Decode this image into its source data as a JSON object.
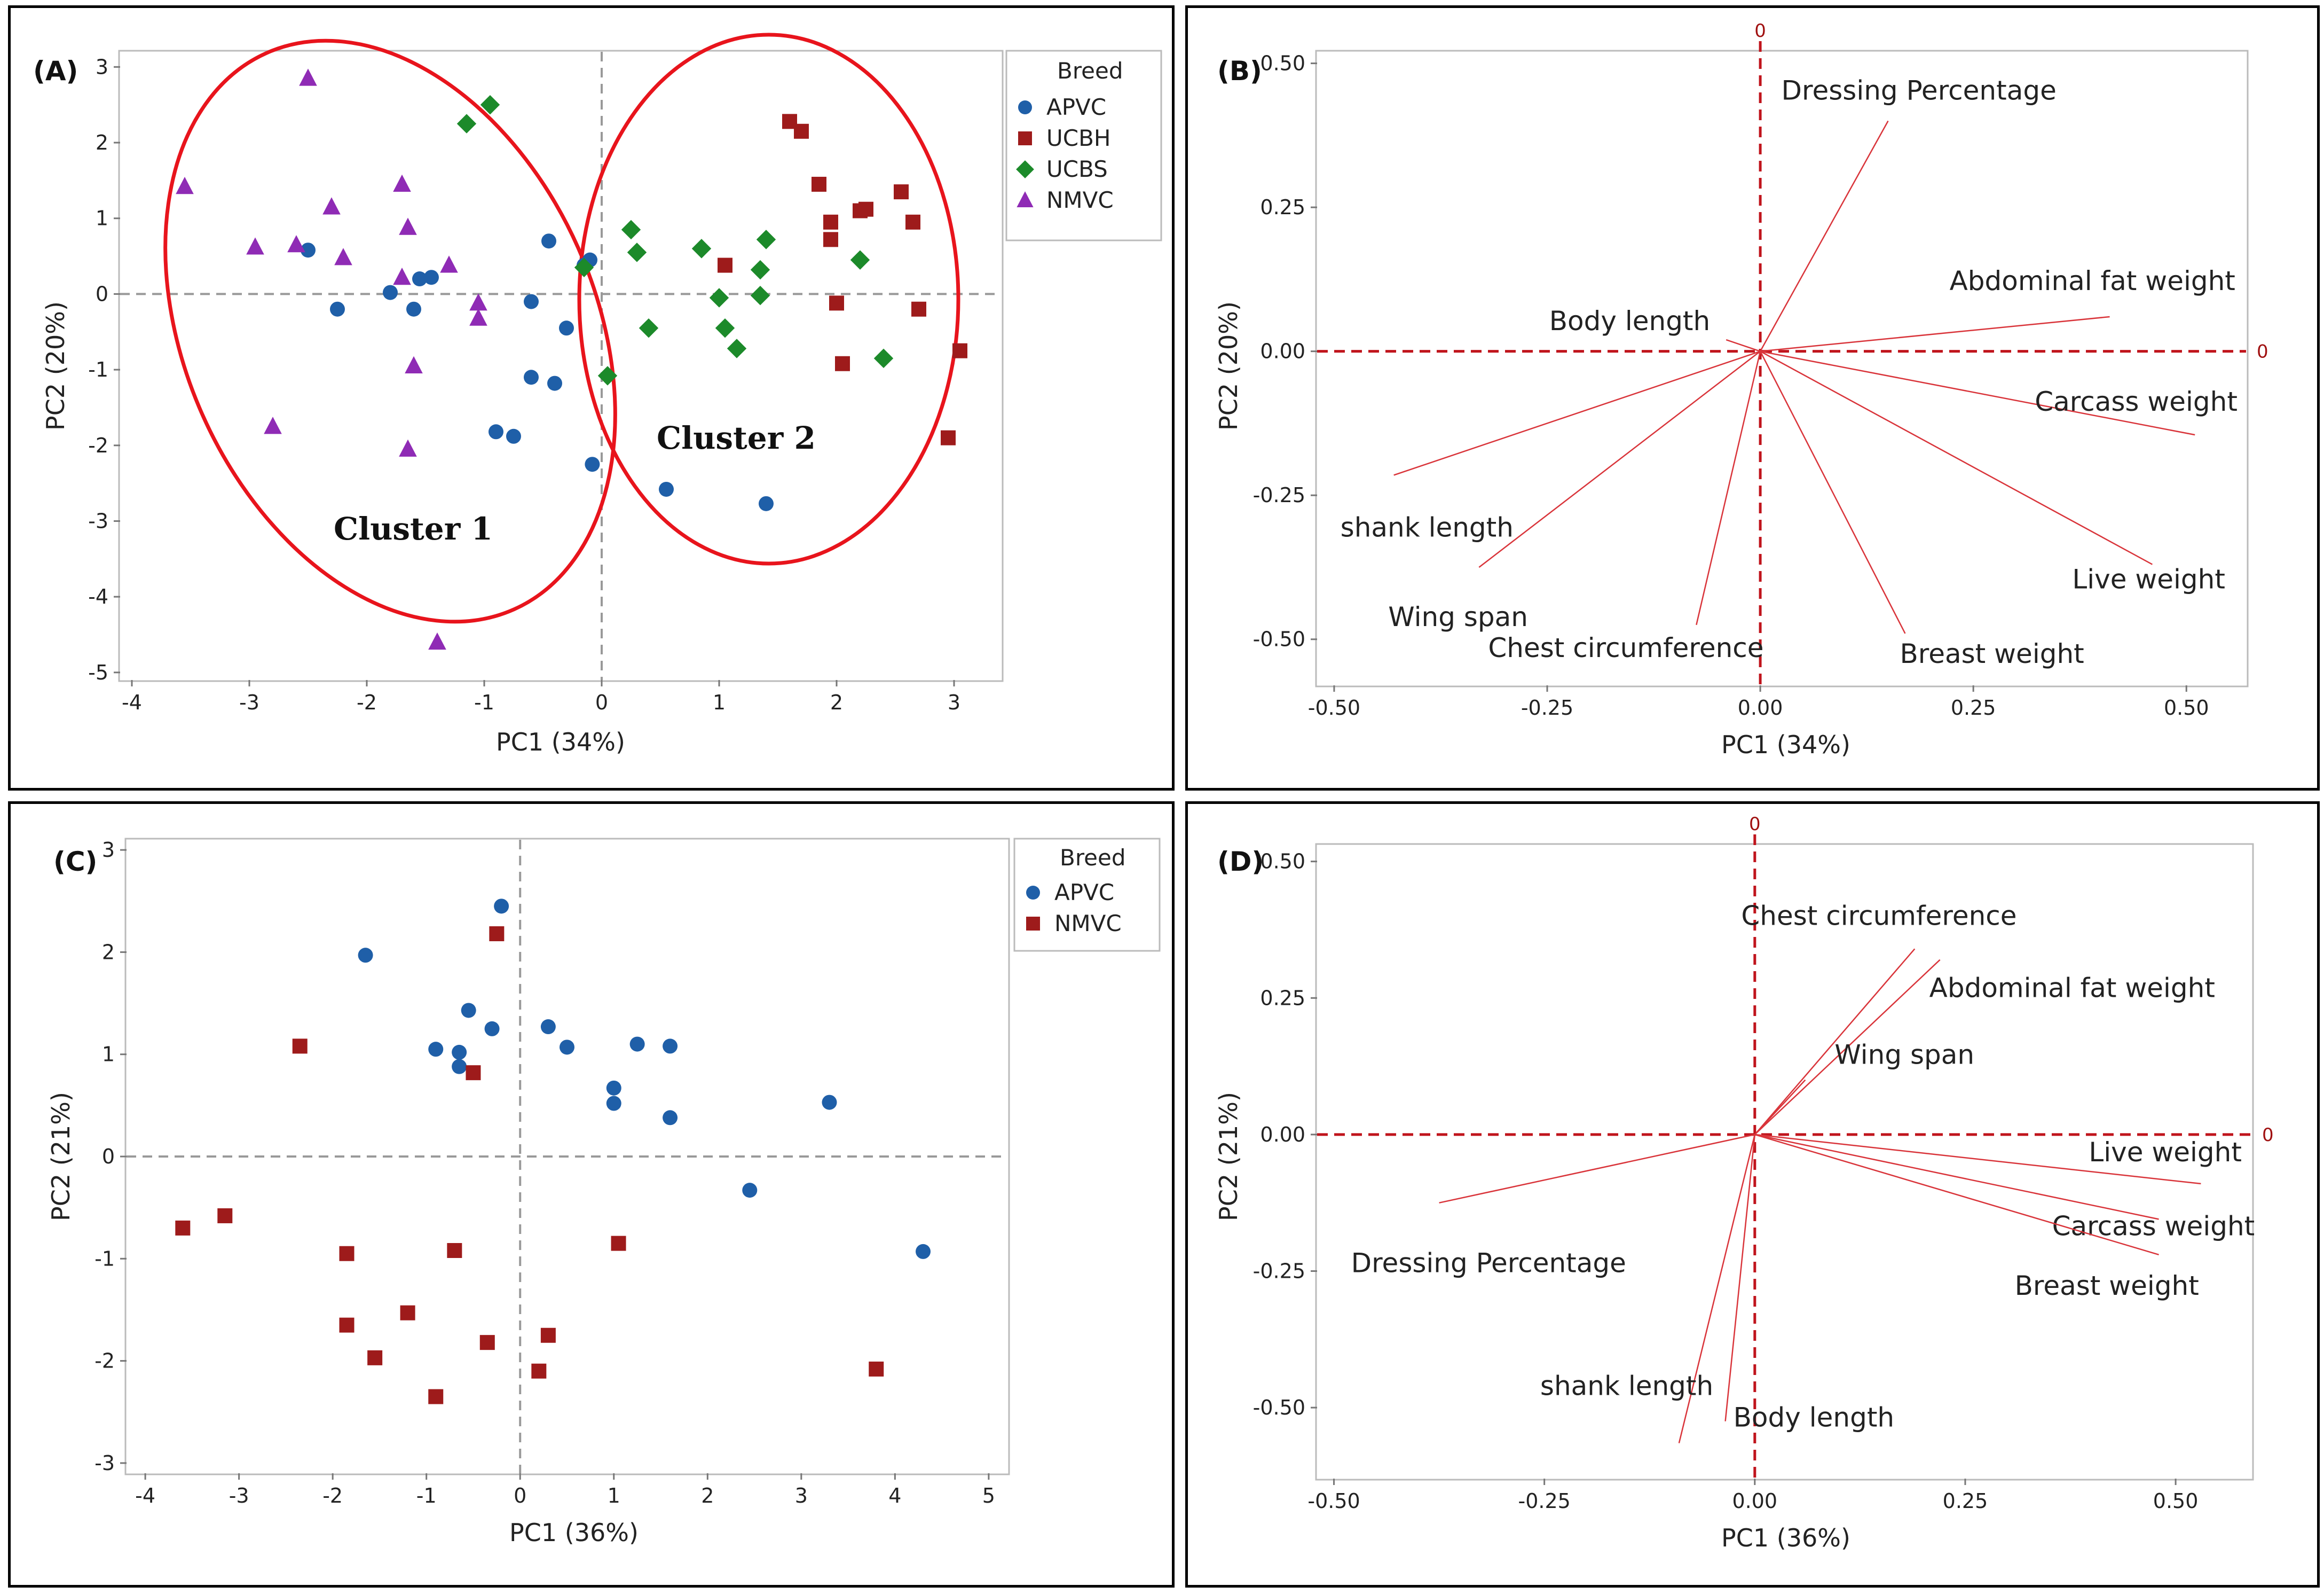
{
  "chart_data": [
    {
      "panel": "(A)",
      "type": "scatter",
      "xlabel": "PC1 (34%)",
      "ylabel": "PC2 (20%)",
      "xlim": [
        -4.1,
        3.4
      ],
      "ylim": [
        -5.1,
        3.2
      ],
      "xticks": [
        -4,
        -3,
        -2,
        -1,
        0,
        1,
        2,
        3
      ],
      "yticks": [
        -5,
        -4,
        -3,
        -2,
        -1,
        0,
        1,
        2,
        3
      ],
      "legend_title": "Breed",
      "clusters": [
        "Cluster 1",
        "Cluster 2"
      ],
      "series": [
        {
          "name": "APVC",
          "marker": "circle",
          "color": "#1f5fa8",
          "points": [
            [
              -2.5,
              0.58
            ],
            [
              -2.25,
              -0.2
            ],
            [
              -1.8,
              0.02
            ],
            [
              -1.6,
              -0.2
            ],
            [
              -1.55,
              0.2
            ],
            [
              -1.45,
              0.22
            ],
            [
              -0.9,
              -1.82
            ],
            [
              -0.75,
              -1.88
            ],
            [
              -0.6,
              -0.1
            ],
            [
              -0.6,
              -1.1
            ],
            [
              -0.45,
              0.7
            ],
            [
              -0.4,
              -1.18
            ],
            [
              -0.3,
              -0.45
            ],
            [
              -0.15,
              0.38
            ],
            [
              -0.1,
              0.45
            ],
            [
              -0.08,
              -2.25
            ],
            [
              0.55,
              -2.58
            ],
            [
              1.4,
              -2.77
            ]
          ]
        },
        {
          "name": "UCBH",
          "marker": "square",
          "color": "#9e1b1b",
          "points": [
            [
              1.6,
              2.28
            ],
            [
              1.7,
              2.15
            ],
            [
              1.85,
              1.45
            ],
            [
              1.95,
              0.95
            ],
            [
              1.95,
              0.72
            ],
            [
              2.0,
              -0.12
            ],
            [
              2.05,
              -0.92
            ],
            [
              2.2,
              1.1
            ],
            [
              2.25,
              1.12
            ],
            [
              2.55,
              1.35
            ],
            [
              2.65,
              0.95
            ],
            [
              2.7,
              -0.2
            ],
            [
              2.95,
              -1.9
            ],
            [
              3.05,
              -0.75
            ],
            [
              1.05,
              0.38
            ]
          ]
        },
        {
          "name": "UCBS",
          "marker": "diamond",
          "color": "#1c8a2a",
          "points": [
            [
              -1.15,
              2.25
            ],
            [
              -0.95,
              2.5
            ],
            [
              -0.15,
              0.35
            ],
            [
              0.05,
              -1.08
            ],
            [
              0.25,
              0.85
            ],
            [
              0.3,
              0.55
            ],
            [
              0.4,
              -0.45
            ],
            [
              0.85,
              0.6
            ],
            [
              1.0,
              -0.05
            ],
            [
              1.05,
              -0.45
            ],
            [
              1.15,
              -0.72
            ],
            [
              1.35,
              0.32
            ],
            [
              1.4,
              0.72
            ],
            [
              1.35,
              -0.02
            ],
            [
              2.2,
              0.45
            ],
            [
              2.4,
              -0.85
            ]
          ]
        },
        {
          "name": "NMVC",
          "marker": "triangle",
          "color": "#8f2bb5",
          "points": [
            [
              -2.5,
              2.85
            ],
            [
              -3.55,
              1.42
            ],
            [
              -2.3,
              1.15
            ],
            [
              -1.7,
              1.45
            ],
            [
              -1.65,
              0.88
            ],
            [
              -2.95,
              0.62
            ],
            [
              -2.6,
              0.65
            ],
            [
              -2.2,
              0.48
            ],
            [
              -1.7,
              0.22
            ],
            [
              -1.3,
              0.38
            ],
            [
              -1.05,
              -0.12
            ],
            [
              -1.05,
              -0.32
            ],
            [
              -1.6,
              -0.95
            ],
            [
              -2.8,
              -1.75
            ],
            [
              -1.65,
              -2.05
            ],
            [
              -1.4,
              -4.6
            ]
          ]
        }
      ]
    },
    {
      "panel": "(B)",
      "type": "biplot",
      "xlabel": "PC1 (34%)",
      "ylabel": "PC2 (20%)",
      "xlim": [
        -0.52,
        0.57
      ],
      "ylim": [
        -0.58,
        0.52
      ],
      "xticks": [
        "-0.50",
        "-0.25",
        "0.00",
        "0.25",
        "0.50"
      ],
      "yticks": [
        "-0.50",
        "-0.25",
        "0.00",
        "0.25",
        "0.50"
      ],
      "zero_label": "0",
      "vectors": [
        {
          "name": "Dressing Percentage",
          "x": 0.15,
          "y": 0.4
        },
        {
          "name": "Body length",
          "x": -0.04,
          "y": 0.02
        },
        {
          "name": "Abdominal fat weight",
          "x": 0.41,
          "y": 0.06
        },
        {
          "name": "Carcass weight",
          "x": 0.51,
          "y": -0.145
        },
        {
          "name": "shank length",
          "x": -0.43,
          "y": -0.215
        },
        {
          "name": "Wing span",
          "x": -0.33,
          "y": -0.375
        },
        {
          "name": "Chest circumference",
          "x": -0.075,
          "y": -0.475
        },
        {
          "name": "Live weight",
          "x": 0.46,
          "y": -0.37
        },
        {
          "name": "Breast weight",
          "x": 0.17,
          "y": -0.49
        }
      ]
    },
    {
      "panel": "(C)",
      "type": "scatter",
      "xlabel": "PC1 (36%)",
      "ylabel": "PC2 (21%)",
      "xlim": [
        -4.2,
        5.2
      ],
      "ylim": [
        -3.1,
        3.1
      ],
      "xticks": [
        -4,
        -3,
        -2,
        -1,
        0,
        1,
        2,
        3,
        4,
        5
      ],
      "yticks": [
        -3,
        -2,
        -1,
        0,
        1,
        2,
        3
      ],
      "legend_title": "Breed",
      "series": [
        {
          "name": "APVC",
          "marker": "circle",
          "color": "#1f5fa8",
          "points": [
            [
              -1.65,
              1.97
            ],
            [
              -0.2,
              2.45
            ],
            [
              -0.9,
              1.05
            ],
            [
              -0.65,
              1.02
            ],
            [
              -0.65,
              0.88
            ],
            [
              -0.55,
              1.43
            ],
            [
              -0.3,
              1.25
            ],
            [
              0.3,
              1.27
            ],
            [
              0.5,
              1.07
            ],
            [
              1.0,
              0.67
            ],
            [
              1.0,
              0.52
            ],
            [
              1.25,
              1.1
            ],
            [
              1.6,
              1.08
            ],
            [
              1.6,
              0.38
            ],
            [
              2.45,
              -0.33
            ],
            [
              3.3,
              0.53
            ],
            [
              4.3,
              -0.93
            ]
          ]
        },
        {
          "name": "NMVC",
          "marker": "square",
          "color": "#9e1b1b",
          "points": [
            [
              -0.25,
              2.18
            ],
            [
              -2.35,
              1.08
            ],
            [
              -0.5,
              0.82
            ],
            [
              -3.6,
              -0.7
            ],
            [
              -3.15,
              -0.58
            ],
            [
              -1.85,
              -0.95
            ],
            [
              -0.7,
              -0.92
            ],
            [
              1.05,
              -0.85
            ],
            [
              -1.85,
              -1.65
            ],
            [
              -1.2,
              -1.53
            ],
            [
              -1.55,
              -1.97
            ],
            [
              -0.35,
              -1.82
            ],
            [
              0.3,
              -1.75
            ],
            [
              0.2,
              -2.1
            ],
            [
              -0.9,
              -2.35
            ],
            [
              3.8,
              -2.08
            ]
          ]
        }
      ]
    },
    {
      "panel": "(D)",
      "type": "biplot",
      "xlabel": "PC1 (36%)",
      "ylabel": "PC2 (21%)",
      "xlim": [
        -0.52,
        0.59
      ],
      "ylim": [
        -0.63,
        0.53
      ],
      "xticks": [
        "-0.50",
        "-0.25",
        "0.00",
        "0.25",
        "0.50"
      ],
      "yticks": [
        "-0.50",
        "-0.25",
        "0.00",
        "0.25",
        "0.50"
      ],
      "zero_label": "0",
      "vectors": [
        {
          "name": "Chest circumference",
          "x": 0.19,
          "y": 0.34
        },
        {
          "name": "Abdominal fat weight",
          "x": 0.22,
          "y": 0.32
        },
        {
          "name": "Wing span",
          "x": 0.06,
          "y": 0.1
        },
        {
          "name": "Live weight",
          "x": 0.53,
          "y": -0.09
        },
        {
          "name": "Carcass weight",
          "x": 0.48,
          "y": -0.155
        },
        {
          "name": "Breast weight",
          "x": 0.48,
          "y": -0.22
        },
        {
          "name": "Dressing Percentage",
          "x": -0.375,
          "y": -0.125
        },
        {
          "name": "shank length",
          "x": -0.09,
          "y": -0.565
        },
        {
          "name": "Body length",
          "x": -0.035,
          "y": -0.525
        }
      ]
    }
  ]
}
